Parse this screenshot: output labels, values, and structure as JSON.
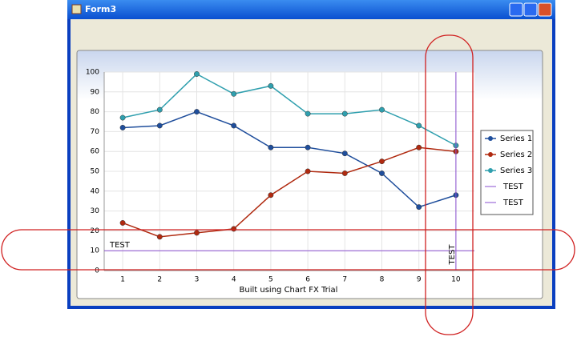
{
  "window": {
    "title": "Form3"
  },
  "chart_data": {
    "type": "line",
    "x_label": "Built using Chart FX Trial",
    "x": [
      1,
      2,
      3,
      4,
      5,
      6,
      7,
      8,
      9,
      10
    ],
    "xlim": [
      0.5,
      10.5
    ],
    "xticks": [
      1,
      2,
      3,
      4,
      5,
      6,
      7,
      8,
      9,
      10
    ],
    "ylim": [
      0,
      100
    ],
    "yticks": [
      0,
      10,
      20,
      30,
      40,
      50,
      60,
      70,
      80,
      90,
      100
    ],
    "grid": true,
    "legend": "right",
    "series": [
      {
        "name": "Series 1",
        "color": "#1f4e9c",
        "values": [
          72,
          73,
          80,
          73,
          62,
          62,
          59,
          49,
          32,
          38
        ]
      },
      {
        "name": "Series 2",
        "color": "#b02a10",
        "values": [
          24,
          17,
          19,
          21,
          38,
          50,
          49,
          55,
          62,
          60
        ]
      },
      {
        "name": "Series 3",
        "color": "#2f9fae",
        "values": [
          77,
          81,
          99,
          89,
          93,
          79,
          79,
          81,
          73,
          63
        ]
      }
    ],
    "constant_lines": [
      {
        "name": "TEST",
        "axis": "y",
        "value": 10,
        "color": "#8a4fd0"
      },
      {
        "name": "TEST",
        "axis": "x",
        "value": 10,
        "color": "#8a4fd0"
      }
    ]
  }
}
